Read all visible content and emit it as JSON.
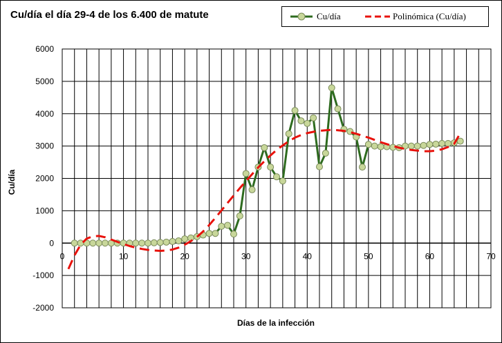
{
  "chart_data": {
    "type": "line",
    "title": "Cu/día el día 29-4 de los 6.400 de matute",
    "xlabel": "Días de la infección",
    "ylabel": "Cu/día",
    "xlim": [
      0,
      70
    ],
    "ylim": [
      -2000,
      6000
    ],
    "x_ticks": [
      0,
      10,
      20,
      30,
      40,
      50,
      60,
      70
    ],
    "y_ticks": [
      -2000,
      -1000,
      0,
      1000,
      2000,
      3000,
      4000,
      5000,
      6000
    ],
    "grid": true,
    "legend_position": "top-right",
    "series": [
      {
        "name": "Cu/día",
        "color": "#2e6b1f",
        "marker_fill": "#c8d79a",
        "x": [
          2,
          3,
          4,
          5,
          6,
          7,
          8,
          9,
          10,
          11,
          12,
          13,
          14,
          15,
          16,
          17,
          18,
          19,
          20,
          21,
          22,
          23,
          24,
          25,
          26,
          27,
          28,
          29,
          30,
          31,
          32,
          33,
          34,
          35,
          36,
          37,
          38,
          39,
          40,
          41,
          42,
          43,
          44,
          45,
          46,
          47,
          48,
          49,
          50,
          51,
          52,
          53,
          54,
          55,
          56,
          57,
          58,
          59,
          60,
          61,
          62,
          63,
          64,
          65
        ],
        "y": [
          0,
          0,
          0,
          0,
          0,
          0,
          0,
          0,
          0,
          0,
          0,
          0,
          0,
          10,
          20,
          30,
          50,
          70,
          130,
          160,
          200,
          250,
          300,
          300,
          520,
          550,
          280,
          840,
          2150,
          1650,
          2350,
          2950,
          2350,
          2050,
          1920,
          3380,
          4100,
          3780,
          3700,
          3870,
          2360,
          2780,
          4800,
          4150,
          3520,
          3450,
          3280,
          2350,
          3050,
          3000,
          2980,
          2980,
          2960,
          2950,
          3000,
          3000,
          3000,
          3020,
          3050,
          3060,
          3080,
          3080,
          3100,
          3150
        ]
      },
      {
        "name": "Polinómica (Cu/día)",
        "color": "#e8120c",
        "dashed": true,
        "x": [
          1,
          2,
          3,
          4,
          5,
          6,
          7,
          8,
          9,
          10,
          11,
          12,
          13,
          14,
          15,
          16,
          17,
          18,
          19,
          20,
          21,
          22,
          23,
          24,
          25,
          26,
          27,
          28,
          29,
          30,
          31,
          32,
          33,
          34,
          35,
          36,
          37,
          38,
          39,
          40,
          41,
          42,
          43,
          44,
          45,
          46,
          47,
          48,
          49,
          50,
          51,
          52,
          53,
          54,
          55,
          56,
          57,
          58,
          59,
          60,
          61,
          62,
          63,
          64,
          65
        ],
        "y": [
          -800,
          -380,
          -50,
          140,
          210,
          220,
          180,
          110,
          40,
          -30,
          -90,
          -140,
          -180,
          -210,
          -230,
          -240,
          -230,
          -200,
          -140,
          -50,
          60,
          190,
          360,
          560,
          780,
          1010,
          1240,
          1470,
          1700,
          1920,
          2130,
          2340,
          2530,
          2710,
          2880,
          3020,
          3150,
          3260,
          3340,
          3400,
          3440,
          3470,
          3490,
          3500,
          3490,
          3470,
          3430,
          3380,
          3320,
          3260,
          3190,
          3120,
          3060,
          3000,
          2950,
          2910,
          2880,
          2860,
          2840,
          2840,
          2860,
          2900,
          2970,
          3070,
          3400
        ]
      }
    ]
  }
}
